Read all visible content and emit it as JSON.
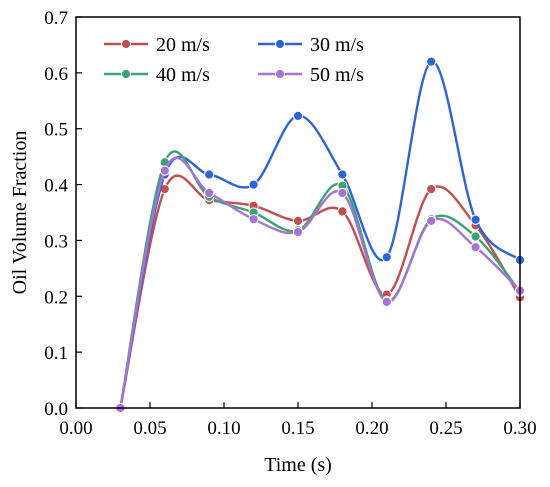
{
  "chart_data": {
    "type": "line",
    "title": "",
    "xlabel": "Time (s)",
    "ylabel": "Oil Volume Fraction",
    "xlim": [
      0.0,
      0.3
    ],
    "ylim": [
      0.0,
      0.7
    ],
    "xticks": [
      "0.00",
      "0.05",
      "0.10",
      "0.15",
      "0.20",
      "0.25",
      "0.30"
    ],
    "yticks": [
      "0.0",
      "0.1",
      "0.2",
      "0.3",
      "0.4",
      "0.5",
      "0.6",
      "0.7"
    ],
    "grid": false,
    "legend_position": "top-left",
    "x": [
      0.03,
      0.06,
      0.09,
      0.12,
      0.15,
      0.18,
      0.21,
      0.24,
      0.27,
      0.3
    ],
    "series": [
      {
        "name": "20 m/s",
        "color": "#c0504d",
        "values": [
          0.0,
          0.392,
          0.372,
          0.362,
          0.335,
          0.352,
          0.203,
          0.392,
          0.327,
          0.198
        ]
      },
      {
        "name": "30 m/s",
        "color": "#2e64d6",
        "values": [
          0.0,
          0.418,
          0.418,
          0.4,
          0.523,
          0.418,
          0.27,
          0.62,
          0.337,
          0.265
        ]
      },
      {
        "name": "40 m/s",
        "color": "#3aa374",
        "values": [
          0.0,
          0.44,
          0.378,
          0.35,
          0.318,
          0.398,
          0.192,
          0.338,
          0.307,
          0.208
        ]
      },
      {
        "name": "50 m/s",
        "color": "#a872d6",
        "values": [
          0.0,
          0.425,
          0.385,
          0.338,
          0.315,
          0.385,
          0.19,
          0.335,
          0.288,
          0.21
        ]
      }
    ]
  }
}
